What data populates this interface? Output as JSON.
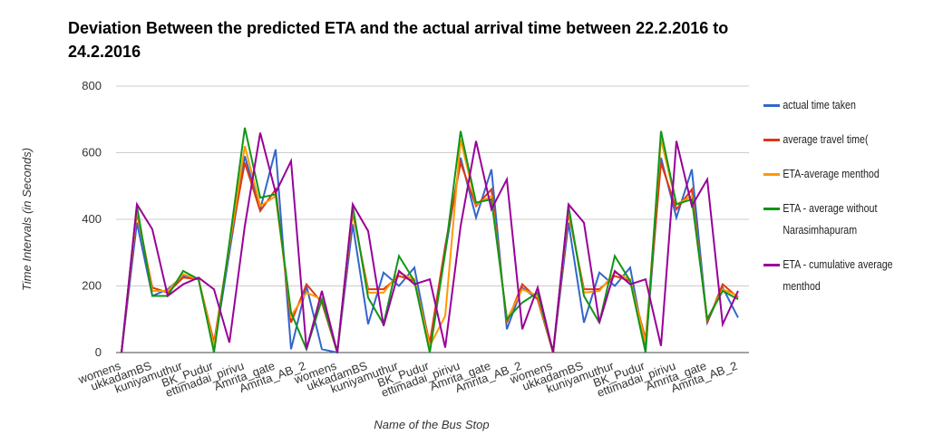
{
  "chart_data": {
    "type": "line",
    "title": "Deviation Between the predicted ETA and the actual arrival time between 22.2.2016 to 24.2.2016",
    "xlabel": "Name of the Bus Stop",
    "ylabel": "Time Intervals (in Seconds)",
    "categories": [
      "womens",
      null,
      "ukkadamBS",
      null,
      "kuniyamuthur",
      null,
      "BK_Pudur",
      null,
      "ettimadai_pirivu",
      null,
      "Amrita_gate",
      null,
      "Amrita_AB_2",
      null,
      "womens",
      null,
      "ukkadamBS",
      null,
      "kuniyamuthur",
      null,
      "BK_Pudur",
      null,
      "ettimadai_pirivu",
      null,
      "Amrita_gate",
      null,
      "Amrita_AB_2",
      null,
      "womens",
      null,
      "ukkadamBS",
      null,
      "kuniyamuthur",
      null,
      "BK_Pudur",
      null,
      "ettimadai_pirivu",
      null,
      "Amrita_gate",
      null,
      "Amrita_AB_2"
    ],
    "ylim": [
      0,
      800
    ],
    "yticks": [
      0,
      200,
      400,
      600,
      800
    ],
    "grid": true,
    "series": [
      {
        "name": "actual time taken",
        "color": "#3366cc",
        "values": [
          0,
          390,
          170,
          190,
          230,
          220,
          10,
          300,
          590,
          430,
          610,
          10,
          200,
          10,
          0,
          385,
          85,
          240,
          200,
          255,
          20,
          300,
          585,
          405,
          550,
          70,
          195,
          160,
          0,
          390,
          90,
          240,
          200,
          255,
          10,
          585,
          405,
          550,
          90,
          195,
          105
        ]
      },
      {
        "name": "average travel time(",
        "color": "#dc3912",
        "values": [
          0,
          420,
          195,
          180,
          225,
          220,
          30,
          320,
          570,
          425,
          490,
          90,
          205,
          150,
          0,
          420,
          190,
          190,
          230,
          215,
          30,
          320,
          570,
          440,
          490,
          90,
          205,
          160,
          0,
          420,
          190,
          190,
          230,
          215,
          40,
          570,
          430,
          490,
          90,
          205,
          165
        ]
      },
      {
        "name": "ETA-average menthod",
        "color": "#ff9900",
        "values": [
          0,
          430,
          185,
          185,
          235,
          220,
          20,
          320,
          620,
          440,
          470,
          110,
          180,
          160,
          0,
          430,
          180,
          180,
          240,
          220,
          20,
          110,
          640,
          445,
          470,
          100,
          190,
          170,
          0,
          430,
          180,
          185,
          240,
          220,
          30,
          640,
          445,
          470,
          100,
          190,
          170
        ]
      },
      {
        "name": "ETA - average without Narasimhapuram",
        "color": "#109618",
        "values": [
          0,
          440,
          170,
          170,
          245,
          220,
          0,
          330,
          675,
          465,
          475,
          120,
          10,
          160,
          0,
          440,
          165,
          85,
          290,
          215,
          0,
          300,
          665,
          450,
          460,
          100,
          150,
          180,
          0,
          440,
          170,
          90,
          290,
          215,
          0,
          665,
          445,
          460,
          100,
          185,
          160
        ]
      },
      {
        "name": "ETA - cumulative average menthod",
        "color": "#990099",
        "values": [
          0,
          445,
          370,
          170,
          205,
          225,
          190,
          30,
          380,
          660,
          480,
          575,
          10,
          185,
          0,
          445,
          365,
          80,
          245,
          205,
          220,
          15,
          380,
          635,
          430,
          520,
          70,
          195,
          0,
          445,
          390,
          90,
          245,
          205,
          220,
          20,
          635,
          440,
          520,
          85,
          185
        ]
      }
    ]
  }
}
